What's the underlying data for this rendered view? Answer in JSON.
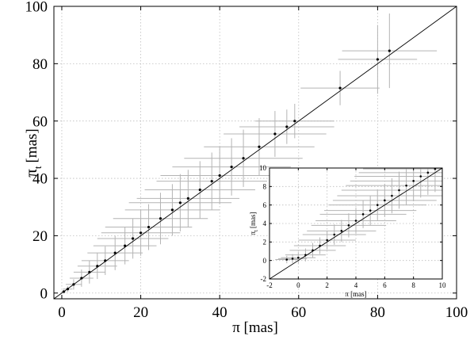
{
  "chart_data": [
    {
      "type": "scatter",
      "role": "main",
      "xlabel": "π [mas]",
      "ylabel_main": "π",
      "ylabel_sub": "t",
      "ylabel_unit": "[mas]",
      "xlim": [
        -2,
        100
      ],
      "ylim": [
        -2,
        100
      ],
      "xticks": [
        0,
        20,
        40,
        60,
        80,
        100
      ],
      "yticks": [
        0,
        20,
        40,
        60,
        80,
        100
      ],
      "grid": true,
      "reference_line": "y = x",
      "series": [
        {
          "marker": "point",
          "errorbars": true,
          "errorbar_color": "#b4b4b4",
          "point_color": "#000000",
          "points": [
            {
              "x": 0.5,
              "y": 0.5,
              "ex": 0.6,
              "ey": 0.6
            },
            {
              "x": 1.5,
              "y": 1.4,
              "ex": 1.2,
              "ey": 1.0
            },
            {
              "x": 3.0,
              "y": 3.0,
              "ex": 2.0,
              "ey": 1.8
            },
            {
              "x": 5.0,
              "y": 5.2,
              "ex": 3.0,
              "ey": 3.0
            },
            {
              "x": 7.0,
              "y": 7.3,
              "ex": 4.0,
              "ey": 4.0
            },
            {
              "x": 9.0,
              "y": 9.4,
              "ex": 5.0,
              "ey": 4.5
            },
            {
              "x": 11.0,
              "y": 11.3,
              "ex": 6.0,
              "ey": 5.0
            },
            {
              "x": 13.5,
              "y": 14.0,
              "ex": 7.0,
              "ey": 6.0
            },
            {
              "x": 16.0,
              "y": 16.5,
              "ex": 8.0,
              "ey": 6.5
            },
            {
              "x": 18.0,
              "y": 19.0,
              "ex": 9.0,
              "ey": 7.0
            },
            {
              "x": 20.0,
              "y": 21.0,
              "ex": 10.0,
              "ey": 8.0
            },
            {
              "x": 22.0,
              "y": 23.0,
              "ex": 11.0,
              "ey": 8.0
            },
            {
              "x": 25.0,
              "y": 26.0,
              "ex": 12.0,
              "ey": 9.0
            },
            {
              "x": 28.0,
              "y": 29.0,
              "ex": 12.0,
              "ey": 9.0
            },
            {
              "x": 30.0,
              "y": 31.5,
              "ex": 13.0,
              "ey": 10.0
            },
            {
              "x": 32.0,
              "y": 33.0,
              "ex": 13.0,
              "ey": 10.0
            },
            {
              "x": 35.0,
              "y": 36.0,
              "ex": 14.0,
              "ey": 10.0
            },
            {
              "x": 38.0,
              "y": 39.0,
              "ex": 14.0,
              "ey": 10.0
            },
            {
              "x": 40.0,
              "y": 41.0,
              "ex": 15.0,
              "ey": 10.0
            },
            {
              "x": 43.0,
              "y": 44.0,
              "ex": 15.0,
              "ey": 10.0
            },
            {
              "x": 46.0,
              "y": 47.0,
              "ex": 15.0,
              "ey": 10.0
            },
            {
              "x": 50.0,
              "y": 51.0,
              "ex": 14.0,
              "ey": 10.0
            },
            {
              "x": 54.0,
              "y": 55.5,
              "ex": 13.0,
              "ey": 8.0
            },
            {
              "x": 57.0,
              "y": 58.0,
              "ex": 12.0,
              "ey": 6.0
            },
            {
              "x": 59.0,
              "y": 60.0,
              "ex": 10.0,
              "ey": 6.0
            },
            {
              "x": 70.5,
              "y": 71.5,
              "ex": 10.0,
              "ey": 6.0
            },
            {
              "x": 80.0,
              "y": 81.5,
              "ex": 10.0,
              "ey": 12.0
            },
            {
              "x": 83.0,
              "y": 84.5,
              "ex": 12.0,
              "ey": 13.0
            }
          ]
        }
      ]
    },
    {
      "type": "scatter",
      "role": "inset",
      "xlabel": "π [mas]",
      "ylabel_main": "π",
      "ylabel_sub": "t",
      "ylabel_unit": "[mas]",
      "xlim": [
        -2,
        10
      ],
      "ylim": [
        -2,
        10
      ],
      "xticks": [
        -2,
        0,
        2,
        4,
        6,
        8,
        10
      ],
      "yticks": [
        -2,
        0,
        2,
        4,
        6,
        8,
        10
      ],
      "grid": true,
      "reference_line": "y = x",
      "series": [
        {
          "marker": "point",
          "errorbars": true,
          "errorbar_color": "#b4b4b4",
          "point_color": "#000000",
          "points": [
            {
              "x": -0.8,
              "y": 0.1,
              "ex": 0.8,
              "ey": 0.4
            },
            {
              "x": -0.4,
              "y": 0.2,
              "ex": 1.0,
              "ey": 0.5
            },
            {
              "x": 0.0,
              "y": 0.3,
              "ex": 1.2,
              "ey": 0.6
            },
            {
              "x": 0.5,
              "y": 0.6,
              "ex": 1.4,
              "ey": 0.7
            },
            {
              "x": 1.0,
              "y": 1.1,
              "ex": 1.6,
              "ey": 0.8
            },
            {
              "x": 1.5,
              "y": 1.6,
              "ex": 1.8,
              "ey": 0.9
            },
            {
              "x": 2.0,
              "y": 2.2,
              "ex": 2.0,
              "ey": 1.0
            },
            {
              "x": 2.5,
              "y": 2.8,
              "ex": 2.2,
              "ey": 1.1
            },
            {
              "x": 3.0,
              "y": 3.2,
              "ex": 2.4,
              "ey": 1.2
            },
            {
              "x": 3.5,
              "y": 3.8,
              "ex": 2.6,
              "ey": 1.3
            },
            {
              "x": 4.0,
              "y": 4.3,
              "ex": 2.8,
              "ey": 1.4
            },
            {
              "x": 4.5,
              "y": 5.0,
              "ex": 3.0,
              "ey": 1.5
            },
            {
              "x": 5.0,
              "y": 5.4,
              "ex": 3.2,
              "ey": 1.6
            },
            {
              "x": 5.5,
              "y": 6.0,
              "ex": 3.4,
              "ey": 1.7
            },
            {
              "x": 6.0,
              "y": 6.5,
              "ex": 3.6,
              "ey": 1.8
            },
            {
              "x": 6.5,
              "y": 7.0,
              "ex": 3.8,
              "ey": 1.9
            },
            {
              "x": 7.0,
              "y": 7.6,
              "ex": 4.0,
              "ey": 2.0
            },
            {
              "x": 7.5,
              "y": 8.1,
              "ex": 4.2,
              "ey": 2.1
            },
            {
              "x": 8.0,
              "y": 8.6,
              "ex": 4.4,
              "ey": 2.2
            },
            {
              "x": 8.5,
              "y": 9.1,
              "ex": 4.6,
              "ey": 2.3
            },
            {
              "x": 9.0,
              "y": 9.5,
              "ex": 4.8,
              "ey": 2.4
            },
            {
              "x": 9.5,
              "y": 9.9,
              "ex": 5.0,
              "ey": 2.5
            }
          ]
        }
      ]
    }
  ]
}
